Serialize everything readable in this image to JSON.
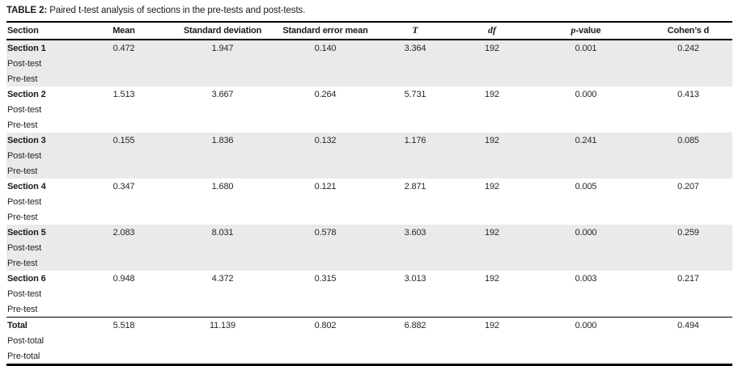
{
  "title": {
    "label": "TABLE 2:",
    "text": " Paired t-test analysis of sections in the pre-tests and post-tests."
  },
  "colors": {
    "shaded_row": "#eaeae8",
    "rule": "#000000",
    "text": "#262626"
  },
  "table": {
    "columns": [
      {
        "key": "section",
        "label": "Section",
        "align": "left"
      },
      {
        "key": "mean",
        "label": "Mean"
      },
      {
        "key": "sd",
        "label": "Standard deviation"
      },
      {
        "key": "se",
        "label": "Standard error mean"
      },
      {
        "key": "t",
        "label": "T",
        "italic": true
      },
      {
        "key": "df",
        "label": "df",
        "italic": true
      },
      {
        "key": "p",
        "parts": [
          {
            "t": "p",
            "italic": true
          },
          {
            "t": "-value"
          }
        ]
      },
      {
        "key": "d",
        "label": "Cohen’s d"
      }
    ],
    "groups": [
      {
        "section": "Section 1",
        "subrows": [
          "Post-test",
          "Pre-test"
        ],
        "shaded": true,
        "total": false,
        "mean": "0.472",
        "sd": "1.947",
        "se": "0.140",
        "t": "3.364",
        "df": "192",
        "p": "0.001",
        "d": "0.242"
      },
      {
        "section": "Section 2",
        "subrows": [
          "Post-test",
          "Pre-test"
        ],
        "shaded": false,
        "total": false,
        "mean": "1.513",
        "sd": "3.667",
        "se": "0.264",
        "t": "5.731",
        "df": "192",
        "p": "0.000",
        "d": "0.413"
      },
      {
        "section": "Section 3",
        "subrows": [
          "Post-test",
          "Pre-test"
        ],
        "shaded": true,
        "total": false,
        "mean": "0.155",
        "sd": "1.836",
        "se": "0.132",
        "t": "1.176",
        "df": "192",
        "p": "0.241",
        "d": "0.085"
      },
      {
        "section": "Section 4",
        "subrows": [
          "Post-test",
          "Pre-test"
        ],
        "shaded": false,
        "total": false,
        "mean": "0.347",
        "sd": "1.680",
        "se": "0.121",
        "t": "2.871",
        "df": "192",
        "p": "0.005",
        "d": "0.207"
      },
      {
        "section": "Section 5",
        "subrows": [
          "Post-test",
          "Pre-test"
        ],
        "shaded": true,
        "total": false,
        "mean": "2.083",
        "sd": "8.031",
        "se": "0.578",
        "t": "3.603",
        "df": "192",
        "p": "0.000",
        "d": "0.259"
      },
      {
        "section": "Section 6",
        "subrows": [
          "Post-test",
          "Pre-test"
        ],
        "shaded": false,
        "total": false,
        "mean": "0.948",
        "sd": "4.372",
        "se": "0.315",
        "t": "3.013",
        "df": "192",
        "p": "0.003",
        "d": "0.217"
      },
      {
        "section": "Total",
        "subrows": [
          "Post-total",
          "Pre-total"
        ],
        "shaded": false,
        "total": true,
        "mean": "5.518",
        "sd": "11.139",
        "se": "0.802",
        "t": "6.882",
        "df": "192",
        "p": "0.000",
        "d": "0.494"
      }
    ]
  }
}
